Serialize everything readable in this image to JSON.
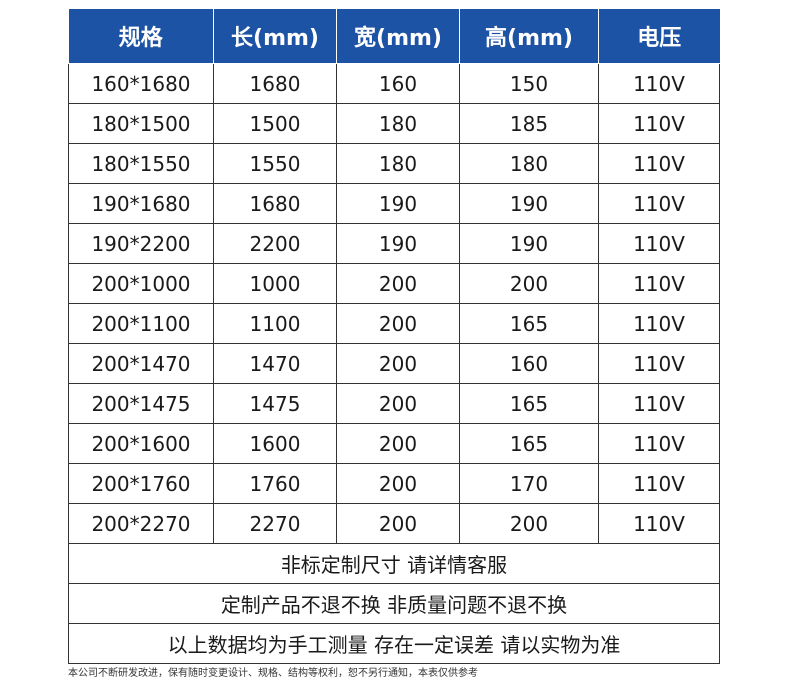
{
  "table": {
    "headers": [
      "规格",
      "长(mm)",
      "宽(mm)",
      "高(mm)",
      "电压"
    ],
    "rows": [
      [
        "160*1680",
        "1680",
        "160",
        "150",
        "110V"
      ],
      [
        "180*1500",
        "1500",
        "180",
        "185",
        "110V"
      ],
      [
        "180*1550",
        "1550",
        "180",
        "180",
        "110V"
      ],
      [
        "190*1680",
        "1680",
        "190",
        "190",
        "110V"
      ],
      [
        "190*2200",
        "2200",
        "190",
        "190",
        "110V"
      ],
      [
        "200*1000",
        "1000",
        "200",
        "200",
        "110V"
      ],
      [
        "200*1100",
        "1100",
        "200",
        "165",
        "110V"
      ],
      [
        "200*1470",
        "1470",
        "200",
        "160",
        "110V"
      ],
      [
        "200*1475",
        "1475",
        "200",
        "165",
        "110V"
      ],
      [
        "200*1600",
        "1600",
        "200",
        "165",
        "110V"
      ],
      [
        "200*1760",
        "1760",
        "200",
        "170",
        "110V"
      ],
      [
        "200*2270",
        "2270",
        "200",
        "200",
        "110V"
      ]
    ],
    "notes": [
      "非标定制尺寸 请详情客服",
      "定制产品不退不换 非质量问题不退不换",
      "以上数据均为手工测量 存在一定误差 请以实物为准"
    ]
  },
  "footer": "本公司不断研发改进，保有随时变更设计、规格、结构等权利，恕不另行通知，本表仅供参考",
  "colors": {
    "header_bg": "#1d53a5",
    "header_text": "#ffffff",
    "border": "#333333"
  }
}
